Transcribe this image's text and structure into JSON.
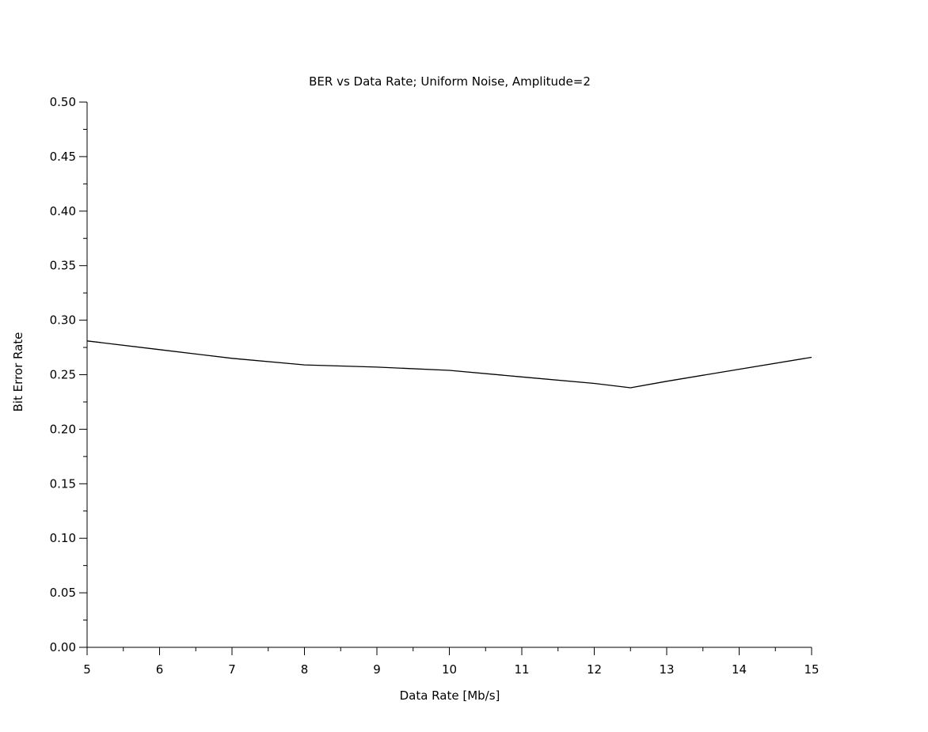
{
  "chart_data": {
    "type": "line",
    "title": "BER vs Data Rate; Uniform Noise, Amplitude=2",
    "xlabel": "Data Rate [Mb/s]",
    "ylabel": "Bit Error Rate",
    "xlim": [
      5,
      15
    ],
    "ylim": [
      0,
      0.5
    ],
    "xticks": [
      "5",
      "6",
      "7",
      "8",
      "9",
      "10",
      "11",
      "12",
      "13",
      "14",
      "15"
    ],
    "yticks": [
      "0.00",
      "0.05",
      "0.10",
      "0.15",
      "0.20",
      "0.25",
      "0.30",
      "0.35",
      "0.40",
      "0.45",
      "0.50"
    ],
    "grid": false,
    "series": [
      {
        "color": "#000000",
        "x": [
          5,
          6,
          7,
          8,
          9,
          10,
          11,
          12,
          12.5,
          13,
          14,
          15
        ],
        "y": [
          0.281,
          0.273,
          0.265,
          0.259,
          0.257,
          0.254,
          0.248,
          0.242,
          0.238,
          0.244,
          0.255,
          0.266
        ]
      }
    ]
  }
}
